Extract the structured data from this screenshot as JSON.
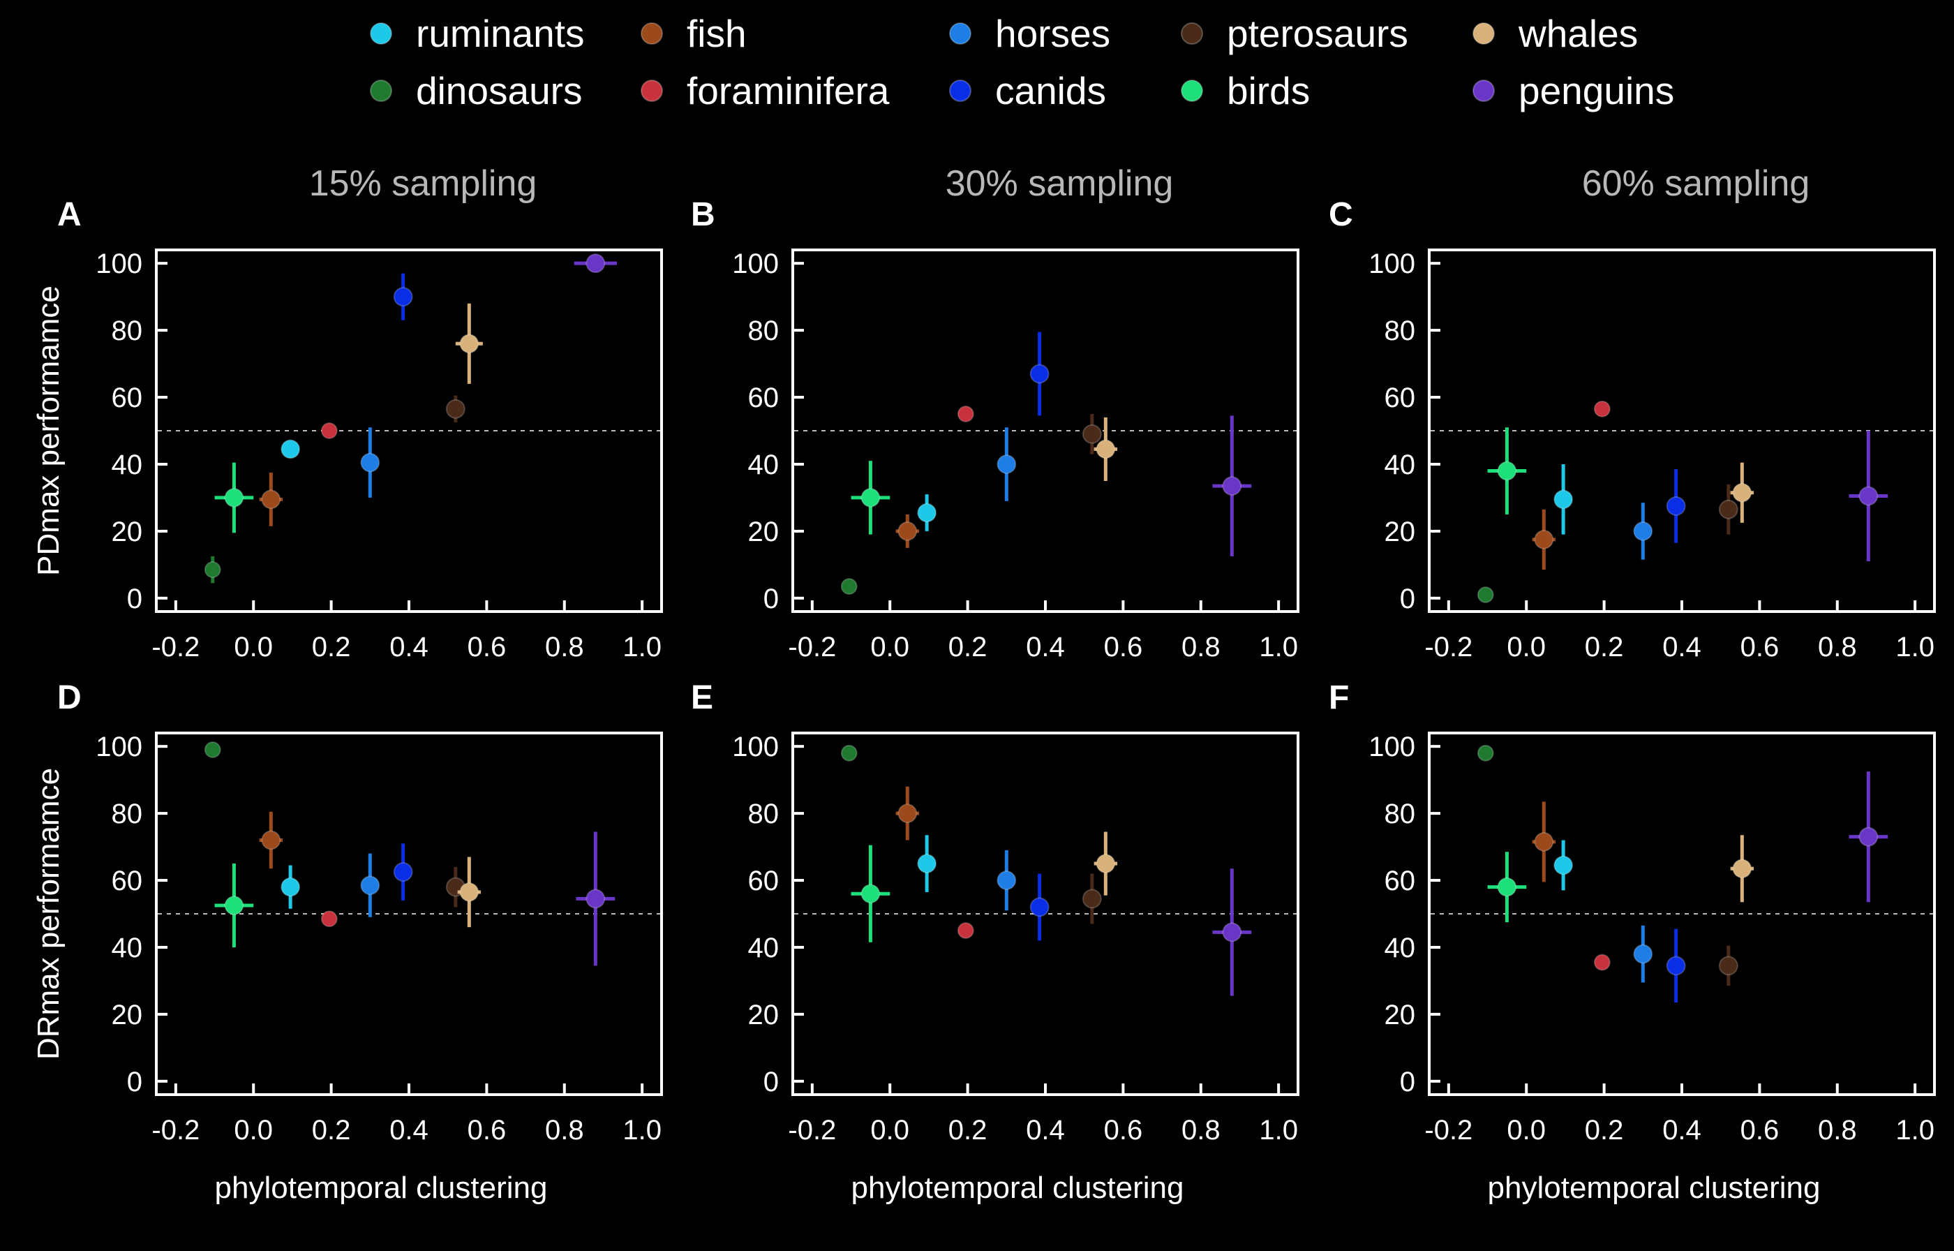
{
  "legend": [
    {
      "name": "ruminants",
      "color": "#1ec8e8"
    },
    {
      "name": "fish",
      "color": "#9c4a1c"
    },
    {
      "name": "horses",
      "color": "#1e7ee6"
    },
    {
      "name": "pterosaurs",
      "color": "#4a2a18"
    },
    {
      "name": "whales",
      "color": "#d8b27a"
    },
    {
      "name": "dinosaurs",
      "color": "#1f7a30"
    },
    {
      "name": "foraminifera",
      "color": "#c8323c"
    },
    {
      "name": "canids",
      "color": "#0a2ee6"
    },
    {
      "name": "birds",
      "color": "#1ee07a"
    },
    {
      "name": "penguins",
      "color": "#6a36c8"
    }
  ],
  "x_label": "phylotemporal clustering",
  "reference_line": 50,
  "chart_data": [
    {
      "type": "scatter",
      "panel": "A",
      "title": "15% sampling",
      "xlabel": "",
      "ylabel": "PDmax performamce",
      "xlim": [
        -0.25,
        1.05
      ],
      "ylim": [
        -4,
        104
      ],
      "xticks": [
        "-0.2",
        "0.0",
        "0.2",
        "0.4",
        "0.6",
        "0.8",
        "1.0"
      ],
      "yticks": [
        "0",
        "20",
        "40",
        "60",
        "80",
        "100"
      ],
      "series": [
        {
          "name": "dinosaurs",
          "x": -0.105,
          "y": 8.5,
          "xerr": 0,
          "yerr": 4
        },
        {
          "name": "birds",
          "x": -0.05,
          "y": 30,
          "xerr": 0.05,
          "yerr": 10.5
        },
        {
          "name": "fish",
          "x": 0.045,
          "y": 29.5,
          "xerr": 0.03,
          "yerr": 8
        },
        {
          "name": "ruminants",
          "x": 0.095,
          "y": 44.5,
          "xerr": 0,
          "yerr": 0
        },
        {
          "name": "foraminifera",
          "x": 0.195,
          "y": 50,
          "xerr": 0,
          "yerr": 0
        },
        {
          "name": "horses",
          "x": 0.3,
          "y": 40.5,
          "xerr": 0,
          "yerr": 10.5
        },
        {
          "name": "canids",
          "x": 0.385,
          "y": 90,
          "xerr": 0.02,
          "yerr": 7
        },
        {
          "name": "pterosaurs",
          "x": 0.52,
          "y": 56.5,
          "xerr": 0,
          "yerr": 4
        },
        {
          "name": "whales",
          "x": 0.555,
          "y": 76,
          "xerr": 0.035,
          "yerr": 12
        },
        {
          "name": "penguins",
          "x": 0.88,
          "y": 100,
          "xerr": 0.055,
          "yerr": 0
        }
      ]
    },
    {
      "type": "scatter",
      "panel": "B",
      "title": "30% sampling",
      "xlabel": "",
      "ylabel": "",
      "xlim": [
        -0.25,
        1.05
      ],
      "ylim": [
        -4,
        104
      ],
      "xticks": [
        "-0.2",
        "0.0",
        "0.2",
        "0.4",
        "0.6",
        "0.8",
        "1.0"
      ],
      "yticks": [
        "0",
        "20",
        "40",
        "60",
        "80",
        "100"
      ],
      "series": [
        {
          "name": "dinosaurs",
          "x": -0.105,
          "y": 3.5,
          "xerr": 0,
          "yerr": 2
        },
        {
          "name": "birds",
          "x": -0.05,
          "y": 30,
          "xerr": 0.05,
          "yerr": 11
        },
        {
          "name": "fish",
          "x": 0.045,
          "y": 20,
          "xerr": 0.03,
          "yerr": 5
        },
        {
          "name": "ruminants",
          "x": 0.095,
          "y": 25.5,
          "xerr": 0,
          "yerr": 5.5
        },
        {
          "name": "foraminifera",
          "x": 0.195,
          "y": 55,
          "xerr": 0,
          "yerr": 0
        },
        {
          "name": "horses",
          "x": 0.3,
          "y": 40,
          "xerr": 0,
          "yerr": 11
        },
        {
          "name": "canids",
          "x": 0.385,
          "y": 67,
          "xerr": 0,
          "yerr": 12.5
        },
        {
          "name": "pterosaurs",
          "x": 0.52,
          "y": 49,
          "xerr": 0,
          "yerr": 6
        },
        {
          "name": "whales",
          "x": 0.555,
          "y": 44.5,
          "xerr": 0.03,
          "yerr": 9.5
        },
        {
          "name": "penguins",
          "x": 0.88,
          "y": 33.5,
          "xerr": 0.05,
          "yerr": 21
        }
      ]
    },
    {
      "type": "scatter",
      "panel": "C",
      "title": "60% sampling",
      "xlabel": "",
      "ylabel": "",
      "xlim": [
        -0.25,
        1.05
      ],
      "ylim": [
        -4,
        104
      ],
      "xticks": [
        "-0.2",
        "0.0",
        "0.2",
        "0.4",
        "0.6",
        "0.8",
        "1.0"
      ],
      "yticks": [
        "0",
        "20",
        "40",
        "60",
        "80",
        "100"
      ],
      "series": [
        {
          "name": "dinosaurs",
          "x": -0.105,
          "y": 1,
          "xerr": 0,
          "yerr": 0
        },
        {
          "name": "birds",
          "x": -0.05,
          "y": 38,
          "xerr": 0.05,
          "yerr": 13
        },
        {
          "name": "fish",
          "x": 0.045,
          "y": 17.5,
          "xerr": 0.03,
          "yerr": 9
        },
        {
          "name": "ruminants",
          "x": 0.095,
          "y": 29.5,
          "xerr": 0,
          "yerr": 10.5
        },
        {
          "name": "foraminifera",
          "x": 0.195,
          "y": 56.5,
          "xerr": 0,
          "yerr": 0
        },
        {
          "name": "horses",
          "x": 0.3,
          "y": 20,
          "xerr": 0,
          "yerr": 8.5
        },
        {
          "name": "canids",
          "x": 0.385,
          "y": 27.5,
          "xerr": 0,
          "yerr": 11
        },
        {
          "name": "pterosaurs",
          "x": 0.52,
          "y": 26.5,
          "xerr": 0,
          "yerr": 7.5
        },
        {
          "name": "whales",
          "x": 0.555,
          "y": 31.5,
          "xerr": 0.03,
          "yerr": 9
        },
        {
          "name": "penguins",
          "x": 0.88,
          "y": 30.5,
          "xerr": 0.05,
          "yerr": 19.5
        }
      ]
    },
    {
      "type": "scatter",
      "panel": "D",
      "title": "",
      "xlabel": "phylotemporal clustering",
      "ylabel": "DRmax performamce",
      "xlim": [
        -0.25,
        1.05
      ],
      "ylim": [
        -4,
        104
      ],
      "xticks": [
        "-0.2",
        "0.0",
        "0.2",
        "0.4",
        "0.6",
        "0.8",
        "1.0"
      ],
      "yticks": [
        "0",
        "20",
        "40",
        "60",
        "80",
        "100"
      ],
      "series": [
        {
          "name": "dinosaurs",
          "x": -0.105,
          "y": 99,
          "xerr": 0,
          "yerr": 0
        },
        {
          "name": "birds",
          "x": -0.05,
          "y": 52.5,
          "xerr": 0.05,
          "yerr": 12.5
        },
        {
          "name": "fish",
          "x": 0.045,
          "y": 72,
          "xerr": 0.03,
          "yerr": 8.5
        },
        {
          "name": "ruminants",
          "x": 0.095,
          "y": 58,
          "xerr": 0,
          "yerr": 6.5
        },
        {
          "name": "foraminifera",
          "x": 0.195,
          "y": 48.5,
          "xerr": 0,
          "yerr": 0
        },
        {
          "name": "horses",
          "x": 0.3,
          "y": 58.5,
          "xerr": 0,
          "yerr": 9.5
        },
        {
          "name": "canids",
          "x": 0.385,
          "y": 62.5,
          "xerr": 0,
          "yerr": 8.5
        },
        {
          "name": "pterosaurs",
          "x": 0.52,
          "y": 58,
          "xerr": 0,
          "yerr": 6
        },
        {
          "name": "whales",
          "x": 0.555,
          "y": 56.5,
          "xerr": 0.03,
          "yerr": 10.5
        },
        {
          "name": "penguins",
          "x": 0.88,
          "y": 54.5,
          "xerr": 0.05,
          "yerr": 20
        }
      ]
    },
    {
      "type": "scatter",
      "panel": "E",
      "title": "",
      "xlabel": "phylotemporal clustering",
      "ylabel": "",
      "xlim": [
        -0.25,
        1.05
      ],
      "ylim": [
        -4,
        104
      ],
      "xticks": [
        "-0.2",
        "0.0",
        "0.2",
        "0.4",
        "0.6",
        "0.8",
        "1.0"
      ],
      "yticks": [
        "0",
        "20",
        "40",
        "60",
        "80",
        "100"
      ],
      "series": [
        {
          "name": "dinosaurs",
          "x": -0.105,
          "y": 98,
          "xerr": 0,
          "yerr": 0
        },
        {
          "name": "birds",
          "x": -0.05,
          "y": 56,
          "xerr": 0.05,
          "yerr": 14.5
        },
        {
          "name": "fish",
          "x": 0.045,
          "y": 80,
          "xerr": 0.03,
          "yerr": 8
        },
        {
          "name": "ruminants",
          "x": 0.095,
          "y": 65,
          "xerr": 0,
          "yerr": 8.5
        },
        {
          "name": "foraminifera",
          "x": 0.195,
          "y": 45,
          "xerr": 0,
          "yerr": 0
        },
        {
          "name": "horses",
          "x": 0.3,
          "y": 60,
          "xerr": 0,
          "yerr": 9
        },
        {
          "name": "canids",
          "x": 0.385,
          "y": 52,
          "xerr": 0,
          "yerr": 10
        },
        {
          "name": "pterosaurs",
          "x": 0.52,
          "y": 54.5,
          "xerr": 0,
          "yerr": 7.5
        },
        {
          "name": "whales",
          "x": 0.555,
          "y": 65,
          "xerr": 0.03,
          "yerr": 9.5
        },
        {
          "name": "penguins",
          "x": 0.88,
          "y": 44.5,
          "xerr": 0.05,
          "yerr": 19
        }
      ]
    },
    {
      "type": "scatter",
      "panel": "F",
      "title": "",
      "xlabel": "phylotemporal clustering",
      "ylabel": "",
      "xlim": [
        -0.25,
        1.05
      ],
      "ylim": [
        -4,
        104
      ],
      "xticks": [
        "-0.2",
        "0.0",
        "0.2",
        "0.4",
        "0.6",
        "0.8",
        "1.0"
      ],
      "yticks": [
        "0",
        "20",
        "40",
        "60",
        "80",
        "100"
      ],
      "series": [
        {
          "name": "dinosaurs",
          "x": -0.105,
          "y": 98,
          "xerr": 0,
          "yerr": 0
        },
        {
          "name": "birds",
          "x": -0.05,
          "y": 58,
          "xerr": 0.05,
          "yerr": 10.5
        },
        {
          "name": "fish",
          "x": 0.045,
          "y": 71.5,
          "xerr": 0.03,
          "yerr": 12
        },
        {
          "name": "ruminants",
          "x": 0.095,
          "y": 64.5,
          "xerr": 0,
          "yerr": 7.5
        },
        {
          "name": "foraminifera",
          "x": 0.195,
          "y": 35.5,
          "xerr": 0,
          "yerr": 0
        },
        {
          "name": "horses",
          "x": 0.3,
          "y": 38,
          "xerr": 0,
          "yerr": 8.5
        },
        {
          "name": "canids",
          "x": 0.385,
          "y": 34.5,
          "xerr": 0,
          "yerr": 11
        },
        {
          "name": "pterosaurs",
          "x": 0.52,
          "y": 34.5,
          "xerr": 0,
          "yerr": 6
        },
        {
          "name": "whales",
          "x": 0.555,
          "y": 63.5,
          "xerr": 0.03,
          "yerr": 10
        },
        {
          "name": "penguins",
          "x": 0.88,
          "y": 73,
          "xerr": 0.05,
          "yerr": 19.5
        }
      ]
    }
  ]
}
